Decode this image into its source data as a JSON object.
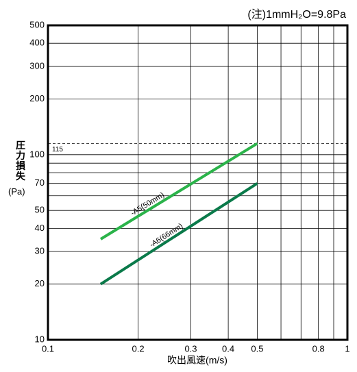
{
  "chart_data": {
    "type": "line",
    "note": "(注)1mmH₂O=9.8Pa",
    "ylabel": "圧力損失",
    "ylabel_unit": "(Pa)",
    "xlabel": "吹出風速(m/s)",
    "log_x": true,
    "log_y": true,
    "grid": true,
    "xlim": [
      0.1,
      1
    ],
    "xticks": [
      0.1,
      0.2,
      0.3,
      0.4,
      0.5,
      0.8,
      1
    ],
    "xminor": [
      0.6,
      0.7,
      0.9
    ],
    "ylim": [
      10,
      500
    ],
    "yticks": [
      10,
      20,
      30,
      40,
      50,
      70,
      100,
      200,
      300,
      400,
      500
    ],
    "yminor": [
      60,
      80,
      90
    ],
    "reference_line": {
      "value": 115,
      "label": "115"
    },
    "series": [
      {
        "name": "-A5(50mm)",
        "color": "#2bb34a",
        "x": [
          0.15,
          0.5
        ],
        "values": [
          35,
          115
        ]
      },
      {
        "name": "-A6(66mm)",
        "color": "#0a7a4a",
        "x": [
          0.15,
          0.5
        ],
        "values": [
          20,
          70
        ]
      }
    ]
  }
}
